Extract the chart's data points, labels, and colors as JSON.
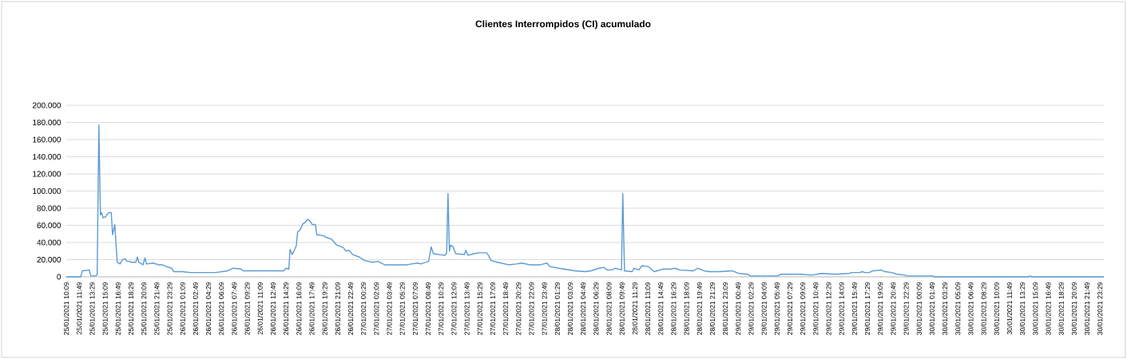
{
  "chart_data": {
    "type": "line",
    "title": "Clientes Interrompidos (CI) acumulado",
    "x": [
      "2021-01-25T10:09",
      "2021-01-25T12:00",
      "2021-01-25T12:14",
      "2021-01-25T13:06",
      "2021-01-25T13:19",
      "2021-01-25T13:58",
      "2021-01-25T14:08",
      "2021-01-25T14:21",
      "2021-01-25T14:33",
      "2021-01-25T14:41",
      "2021-01-25T14:53",
      "2021-01-25T15:14",
      "2021-01-25T15:26",
      "2021-01-25T15:43",
      "2021-01-25T15:57",
      "2021-01-25T16:07",
      "2021-01-25T16:24",
      "2021-01-25T16:43",
      "2021-01-25T17:05",
      "2021-01-25T17:23",
      "2021-01-25T17:44",
      "2021-01-25T17:59",
      "2021-01-25T18:15",
      "2021-01-25T18:36",
      "2021-01-25T19:07",
      "2021-01-25T19:19",
      "2021-01-25T19:30",
      "2021-01-25T20:02",
      "2021-01-25T20:19",
      "2021-01-25T20:29",
      "2021-01-25T21:21",
      "2021-01-25T22:02",
      "2021-01-25T22:32",
      "2021-01-25T23:03",
      "2021-01-25T23:45",
      "2021-01-26T00:01",
      "2021-01-26T01:07",
      "2021-01-26T02:09",
      "2021-01-26T05:04",
      "2021-01-26T05:25",
      "2021-01-26T06:57",
      "2021-01-26T07:42",
      "2021-01-26T08:41",
      "2021-01-26T09:01",
      "2021-01-26T10:03",
      "2021-01-26T12:06",
      "2021-01-26T12:48",
      "2021-01-26T14:10",
      "2021-01-26T14:30",
      "2021-01-26T14:51",
      "2021-01-26T15:01",
      "2021-01-26T15:18",
      "2021-01-26T15:49",
      "2021-01-26T15:59",
      "2021-01-26T16:20",
      "2021-01-26T16:40",
      "2021-01-26T16:55",
      "2021-01-26T17:15",
      "2021-01-26T17:36",
      "2021-01-26T17:52",
      "2021-01-26T18:17",
      "2021-01-26T18:28",
      "2021-01-26T19:19",
      "2021-01-26T19:40",
      "2021-01-26T20:21",
      "2021-01-26T21:02",
      "2021-01-26T21:53",
      "2021-01-26T22:14",
      "2021-01-26T22:35",
      "2021-01-26T23:06",
      "2021-01-26T23:57",
      "2021-01-27T00:38",
      "2021-01-27T01:40",
      "2021-01-27T02:21",
      "2021-01-27T03:13",
      "2021-01-27T06:08",
      "2021-01-27T06:39",
      "2021-01-27T07:30",
      "2021-01-27T07:51",
      "2021-01-27T08:53",
      "2021-01-27T09:13",
      "2021-01-27T09:30",
      "2021-01-27T11:00",
      "2021-01-27T11:13",
      "2021-01-27T11:23",
      "2021-01-27T11:34",
      "2021-01-27T11:43",
      "2021-01-27T12:02",
      "2021-01-27T12:23",
      "2021-01-27T13:31",
      "2021-01-27T13:41",
      "2021-01-27T13:58",
      "2021-01-27T14:43",
      "2021-01-27T15:24",
      "2021-01-27T16:22",
      "2021-01-27T16:36",
      "2021-01-27T16:57",
      "2021-01-27T17:48",
      "2021-01-27T19:11",
      "2021-01-27T20:13",
      "2021-01-27T20:54",
      "2021-01-27T21:55",
      "2021-01-27T23:18",
      "2021-01-28T00:09",
      "2021-01-28T00:30",
      "2021-01-28T01:42",
      "2021-01-28T03:46",
      "2021-01-28T05:08",
      "2021-01-28T05:49",
      "2021-01-28T06:51",
      "2021-01-28T07:32",
      "2021-01-28T07:53",
      "2021-01-28T08:34",
      "2021-01-28T08:55",
      "2021-01-28T09:46",
      "2021-01-28T09:56",
      "2021-01-28T10:09",
      "2021-01-28T11:09",
      "2021-01-28T11:23",
      "2021-01-28T12:00",
      "2021-01-28T12:25",
      "2021-01-28T13:12",
      "2021-01-28T13:59",
      "2021-01-28T15:05",
      "2021-01-28T16:07",
      "2021-01-28T16:38",
      "2021-01-28T17:19",
      "2021-01-28T19:02",
      "2021-01-28T19:37",
      "2021-01-28T20:25",
      "2021-01-28T21:06",
      "2021-01-28T22:29",
      "2021-01-29T00:01",
      "2021-01-29T00:53",
      "2021-01-29T02:05",
      "2021-01-29T02:21",
      "2021-01-29T05:51",
      "2021-01-29T06:22",
      "2021-01-29T08:56",
      "2021-01-29T10:19",
      "2021-01-29T11:31",
      "2021-01-29T13:24",
      "2021-01-29T15:07",
      "2021-01-29T15:28",
      "2021-01-29T16:30",
      "2021-01-29T16:50",
      "2021-01-29T17:11",
      "2021-01-29T17:42",
      "2021-01-29T18:13",
      "2021-01-29T19:15",
      "2021-01-29T19:46",
      "2021-01-29T20:37",
      "2021-01-29T21:18",
      "2021-01-29T22:20",
      "2021-01-29T22:36",
      "2021-01-30T01:56",
      "2021-01-30T02:07",
      "2021-01-30T14:18",
      "2021-01-30T14:28",
      "2021-01-30T14:39",
      "2021-01-30T23:59"
    ],
    "values": [
      0,
      0,
      7000,
      8000,
      1000,
      1000,
      3000,
      177000,
      72000,
      75000,
      69000,
      70000,
      73000,
      75000,
      75000,
      49000,
      61000,
      17000,
      15000,
      20000,
      21000,
      18000,
      18000,
      17000,
      17000,
      23000,
      17000,
      14000,
      22000,
      15000,
      16000,
      14000,
      14000,
      12000,
      10000,
      6000,
      6000,
      5000,
      5000,
      5000,
      7000,
      10000,
      9000,
      7000,
      7000,
      7000,
      7000,
      7000,
      10000,
      9000,
      32000,
      26000,
      36000,
      52000,
      55000,
      62000,
      63000,
      67000,
      65000,
      61000,
      61000,
      49000,
      48000,
      46000,
      44000,
      37000,
      34000,
      30000,
      31000,
      26000,
      23000,
      19000,
      17000,
      18000,
      14000,
      14000,
      15000,
      16000,
      15000,
      18000,
      35000,
      27000,
      25000,
      28000,
      97000,
      30000,
      37000,
      35000,
      27000,
      26000,
      31000,
      25000,
      27000,
      28000,
      28000,
      25000,
      19000,
      17000,
      14000,
      15000,
      16000,
      14000,
      14000,
      16000,
      12000,
      10000,
      7000,
      6000,
      7000,
      10000,
      11000,
      8000,
      8000,
      10000,
      8000,
      97000,
      7000,
      6000,
      10000,
      8000,
      13000,
      12000,
      6000,
      9000,
      9000,
      10000,
      8000,
      7000,
      10000,
      7000,
      6000,
      6000,
      7000,
      4000,
      3000,
      1000,
      1000,
      3000,
      3000,
      2000,
      4000,
      3000,
      4000,
      5000,
      5000,
      6000,
      5000,
      5000,
      7000,
      8000,
      6000,
      5000,
      3000,
      2000,
      1000,
      1000,
      0,
      0,
      1000,
      0,
      0
    ],
    "color": "#5b9bd5",
    "xlim": [
      "2021-01-25T10:09",
      "2021-01-30T23:59"
    ],
    "xticks": [
      {
        "value": "2021-01-25T10:09",
        "label": "25/01/2021 10:09"
      },
      {
        "value": "2021-01-25T11:49",
        "label": "25/01/2021 11:49"
      },
      {
        "value": "2021-01-25T13:29",
        "label": "25/01/2021 13:29"
      },
      {
        "value": "2021-01-25T15:09",
        "label": "25/01/2021 15:09"
      },
      {
        "value": "2021-01-25T16:49",
        "label": "25/01/2021 16:49"
      },
      {
        "value": "2021-01-25T18:29",
        "label": "25/01/2021 18:29"
      },
      {
        "value": "2021-01-25T20:09",
        "label": "25/01/2021 20:09"
      },
      {
        "value": "2021-01-25T21:49",
        "label": "25/01/2021 21:49"
      },
      {
        "value": "2021-01-25T23:29",
        "label": "25/01/2021 23:29"
      },
      {
        "value": "2021-01-26T01:09",
        "label": "26/01/2021 01:09"
      },
      {
        "value": "2021-01-26T02:49",
        "label": "26/01/2021 02:49"
      },
      {
        "value": "2021-01-26T04:29",
        "label": "26/01/2021 04:29"
      },
      {
        "value": "2021-01-26T06:09",
        "label": "26/01/2021 06:09"
      },
      {
        "value": "2021-01-26T07:49",
        "label": "26/01/2021 07:49"
      },
      {
        "value": "2021-01-26T09:29",
        "label": "26/01/2021 09:29"
      },
      {
        "value": "2021-01-26T11:09",
        "label": "26/01/2021 11:09"
      },
      {
        "value": "2021-01-26T12:49",
        "label": "26/01/2021 12:49"
      },
      {
        "value": "2021-01-26T14:29",
        "label": "26/01/2021 14:29"
      },
      {
        "value": "2021-01-26T16:09",
        "label": "26/01/2021 16:09"
      },
      {
        "value": "2021-01-26T17:49",
        "label": "26/01/2021 17:49"
      },
      {
        "value": "2021-01-26T19:29",
        "label": "26/01/2021 19:29"
      },
      {
        "value": "2021-01-26T21:09",
        "label": "26/01/2021 21:09"
      },
      {
        "value": "2021-01-26T22:49",
        "label": "26/01/2021 22:49"
      },
      {
        "value": "2021-01-27T00:29",
        "label": "27/01/2021 00:29"
      },
      {
        "value": "2021-01-27T02:09",
        "label": "27/01/2021 02:09"
      },
      {
        "value": "2021-01-27T03:49",
        "label": "27/01/2021 03:49"
      },
      {
        "value": "2021-01-27T05:29",
        "label": "27/01/2021 05:29"
      },
      {
        "value": "2021-01-27T07:09",
        "label": "27/01/2021 07:09"
      },
      {
        "value": "2021-01-27T08:49",
        "label": "27/01/2021 08:49"
      },
      {
        "value": "2021-01-27T10:29",
        "label": "27/01/2021 10:29"
      },
      {
        "value": "2021-01-27T12:09",
        "label": "27/01/2021 12:09"
      },
      {
        "value": "2021-01-27T13:49",
        "label": "27/01/2021 13:49"
      },
      {
        "value": "2021-01-27T15:29",
        "label": "27/01/2021 15:29"
      },
      {
        "value": "2021-01-27T17:09",
        "label": "27/01/2021 17:09"
      },
      {
        "value": "2021-01-27T18:49",
        "label": "27/01/2021 18:49"
      },
      {
        "value": "2021-01-27T20:29",
        "label": "27/01/2021 20:29"
      },
      {
        "value": "2021-01-27T22:09",
        "label": "27/01/2021 22:09"
      },
      {
        "value": "2021-01-27T23:49",
        "label": "27/01/2021 23:49"
      },
      {
        "value": "2021-01-28T01:29",
        "label": "28/01/2021 01:29"
      },
      {
        "value": "2021-01-28T03:09",
        "label": "28/01/2021 03:09"
      },
      {
        "value": "2021-01-28T04:49",
        "label": "28/01/2021 04:49"
      },
      {
        "value": "2021-01-28T06:29",
        "label": "28/01/2021 06:29"
      },
      {
        "value": "2021-01-28T08:09",
        "label": "28/01/2021 08:09"
      },
      {
        "value": "2021-01-28T09:49",
        "label": "28/01/2021 09:49"
      },
      {
        "value": "2021-01-28T11:29",
        "label": "28/01/2021 11:29"
      },
      {
        "value": "2021-01-28T13:09",
        "label": "28/01/2021 13:09"
      },
      {
        "value": "2021-01-28T14:49",
        "label": "28/01/2021 14:49"
      },
      {
        "value": "2021-01-28T16:29",
        "label": "28/01/2021 16:29"
      },
      {
        "value": "2021-01-28T18:09",
        "label": "28/01/2021 18:09"
      },
      {
        "value": "2021-01-28T19:49",
        "label": "28/01/2021 19:49"
      },
      {
        "value": "2021-01-28T21:29",
        "label": "28/01/2021 21:29"
      },
      {
        "value": "2021-01-28T23:09",
        "label": "28/01/2021 23:09"
      },
      {
        "value": "2021-01-29T00:49",
        "label": "29/01/2021 00:49"
      },
      {
        "value": "2021-01-29T02:29",
        "label": "29/01/2021 02:29"
      },
      {
        "value": "2021-01-29T04:09",
        "label": "29/01/2021 04:09"
      },
      {
        "value": "2021-01-29T05:49",
        "label": "29/01/2021 05:49"
      },
      {
        "value": "2021-01-29T07:29",
        "label": "29/01/2021 07:29"
      },
      {
        "value": "2021-01-29T09:09",
        "label": "29/01/2021 09:09"
      },
      {
        "value": "2021-01-29T10:49",
        "label": "29/01/2021 10:49"
      },
      {
        "value": "2021-01-29T12:29",
        "label": "29/01/2021 12:29"
      },
      {
        "value": "2021-01-29T14:09",
        "label": "29/01/2021 14:09"
      },
      {
        "value": "2021-01-29T15:49",
        "label": "29/01/2021 15:49"
      },
      {
        "value": "2021-01-29T17:29",
        "label": "29/01/2021 17:29"
      },
      {
        "value": "2021-01-29T19:09",
        "label": "29/01/2021 19:09"
      },
      {
        "value": "2021-01-29T20:49",
        "label": "29/01/2021 20:49"
      },
      {
        "value": "2021-01-29T22:29",
        "label": "29/01/2021 22:29"
      },
      {
        "value": "2021-01-30T00:09",
        "label": "30/01/2021 00:09"
      },
      {
        "value": "2021-01-30T01:49",
        "label": "30/01/2021 01:49"
      },
      {
        "value": "2021-01-30T03:29",
        "label": "30/01/2021 03:29"
      },
      {
        "value": "2021-01-30T05:09",
        "label": "30/01/2021 05:09"
      },
      {
        "value": "2021-01-30T06:49",
        "label": "30/01/2021 06:49"
      },
      {
        "value": "2021-01-30T08:29",
        "label": "30/01/2021 08:29"
      },
      {
        "value": "2021-01-30T10:09",
        "label": "30/01/2021 10:09"
      },
      {
        "value": "2021-01-30T11:49",
        "label": "30/01/2021 11:49"
      },
      {
        "value": "2021-01-30T13:29",
        "label": "30/01/2021 13:29"
      },
      {
        "value": "2021-01-30T15:09",
        "label": "30/01/2021 15:09"
      },
      {
        "value": "2021-01-30T16:49",
        "label": "30/01/2021 16:49"
      },
      {
        "value": "2021-01-30T18:29",
        "label": "30/01/2021 18:29"
      },
      {
        "value": "2021-01-30T20:09",
        "label": "30/01/2021 20:09"
      },
      {
        "value": "2021-01-30T21:49",
        "label": "30/01/2021 21:49"
      },
      {
        "value": "2021-01-30T23:29",
        "label": "30/01/2021 23:29"
      }
    ],
    "ylim": [
      0,
      200000
    ],
    "yticks": [
      0,
      {
        "value": 20000,
        "label": "20.000"
      },
      {
        "value": 40000,
        "label": "40.000"
      },
      {
        "value": 60000,
        "label": "60.000"
      },
      {
        "value": 80000,
        "label": "80.000"
      },
      {
        "value": 100000,
        "label": "100.000"
      },
      {
        "value": 120000,
        "label": "120.000"
      },
      {
        "value": 140000,
        "label": "140.000"
      },
      {
        "value": 160000,
        "label": "160.000"
      },
      {
        "value": 180000,
        "label": "180.000"
      },
      {
        "value": 200000,
        "label": "200.000"
      }
    ],
    "grid": "y"
  }
}
